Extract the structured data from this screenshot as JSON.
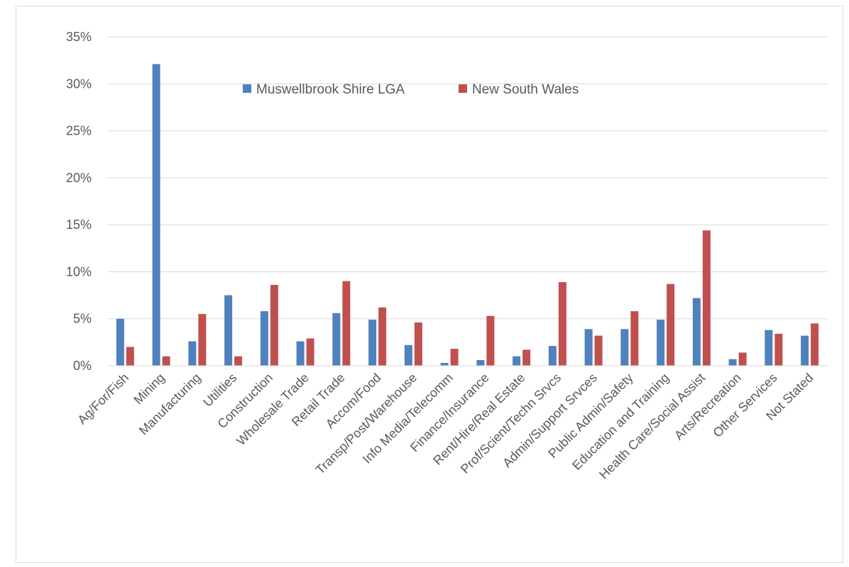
{
  "chart_data": {
    "type": "bar",
    "title": "",
    "xlabel": "",
    "ylabel": "",
    "ylim": [
      0,
      35
    ],
    "yticks": [
      "0%",
      "5%",
      "10%",
      "15%",
      "20%",
      "25%",
      "30%",
      "35%"
    ],
    "ytick_values": [
      0,
      5,
      10,
      15,
      20,
      25,
      30,
      35
    ],
    "grid": true,
    "legend_position": "top-center-inside",
    "categories": [
      "Ag/For/Fish",
      "Mining",
      "Manufacturing",
      "Utilities",
      "Construction",
      "Wholesale Trade",
      "Retail Trade",
      "Accom/Food",
      "Transp/Post/Warehouse",
      "Info Media/Telecomm",
      "Finance/Insurance",
      "Rent/Hire/Real Estate",
      "Prof/Scient/Techn Srvcs",
      "Admin/Support Srvces",
      "Public Admin/Safety",
      "Education and Training",
      "Health Care/Social Assist",
      "Arts/Recreation",
      "Other Services",
      "Not Stated"
    ],
    "series": [
      {
        "name": "Muswellbrook Shire LGA",
        "color": "#4f81bd",
        "values": [
          5.0,
          32.1,
          2.6,
          7.5,
          5.8,
          2.6,
          5.6,
          4.9,
          2.2,
          0.3,
          0.6,
          1.0,
          2.1,
          3.9,
          3.9,
          4.9,
          7.2,
          0.7,
          3.8,
          3.2
        ]
      },
      {
        "name": "New South Wales",
        "color": "#c0504d",
        "values": [
          2.0,
          1.0,
          5.5,
          1.0,
          8.6,
          2.9,
          9.0,
          6.2,
          4.6,
          1.8,
          5.3,
          1.7,
          8.9,
          3.2,
          5.8,
          8.7,
          14.4,
          1.4,
          3.4,
          4.5
        ]
      }
    ]
  }
}
